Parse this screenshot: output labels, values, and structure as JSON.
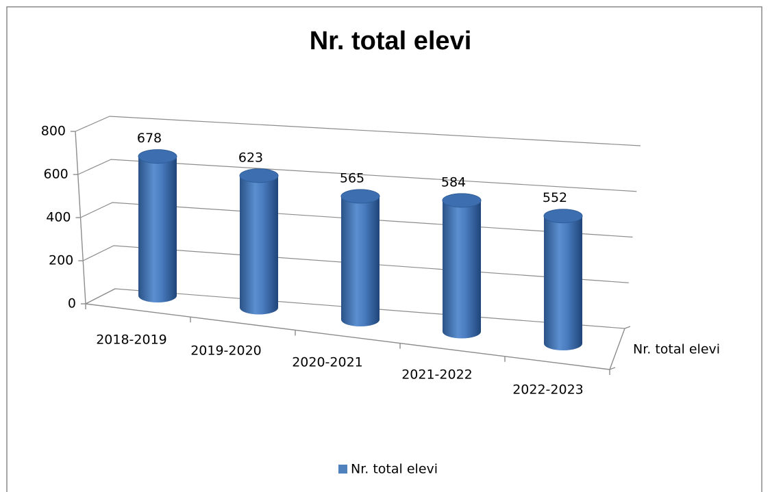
{
  "chart_data": {
    "type": "bar3d",
    "title": "Nr. total elevi",
    "categories": [
      "2018-2019",
      "2019-2020",
      "2020-2021",
      "2021-2022",
      "2022-2023"
    ],
    "series": [
      {
        "name": "Nr. total elevi",
        "color": "#4f81bd",
        "values": [
          678,
          623,
          565,
          584,
          552
        ]
      }
    ],
    "ylim": [
      0,
      800
    ],
    "yticks": [
      0,
      200,
      400,
      600,
      800
    ],
    "grid": true,
    "legend": "bottom"
  }
}
